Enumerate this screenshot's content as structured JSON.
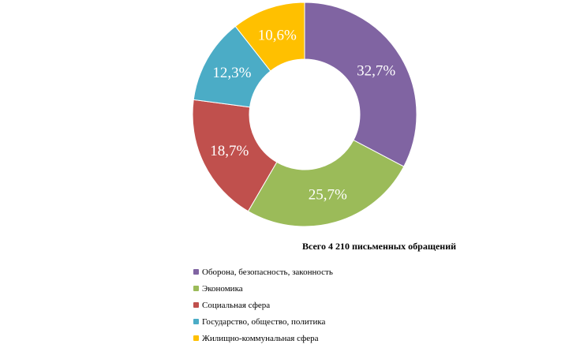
{
  "chart_data": {
    "type": "pie",
    "variant": "donut",
    "title": "Всего 4 210 письменных обращений",
    "series": [
      {
        "name": "Оборона, безопасность, законность",
        "value": 32.7,
        "label": "32,7%",
        "color": "#8064A2"
      },
      {
        "name": "Экономика",
        "value": 25.7,
        "label": "25,7%",
        "color": "#9BBB59"
      },
      {
        "name": "Социальная сфера",
        "value": 18.7,
        "label": "18,7%",
        "color": "#C0504D"
      },
      {
        "name": "Государство, общество, политика",
        "value": 12.3,
        "label": "12,3%",
        "color": "#4BACC6"
      },
      {
        "name": "Жилищно-коммунальная сфера",
        "value": 10.6,
        "label": "10,6%",
        "color": "#FFC000"
      }
    ],
    "legend_position": "bottom"
  }
}
